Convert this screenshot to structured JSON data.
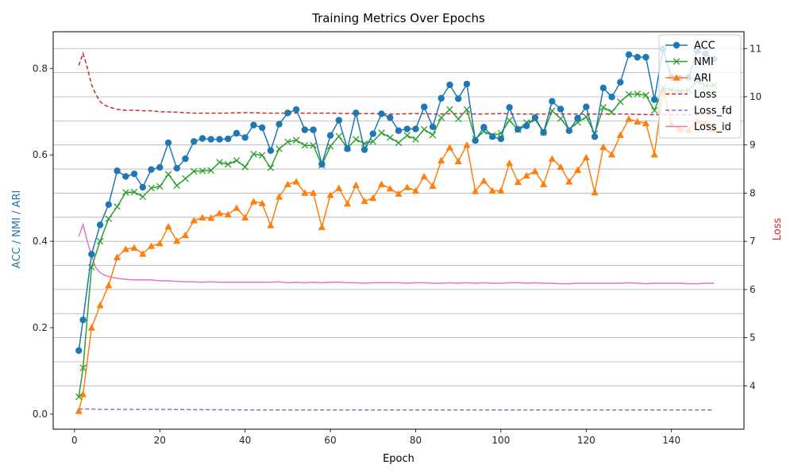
{
  "chart_data": {
    "type": "line",
    "title": "Training Metrics Over Epochs",
    "xlabel": "Epoch",
    "ylabel_left": "ACC / NMI / ARI",
    "ylabel_right": "Loss",
    "xlim": [
      -5,
      157
    ],
    "ylim_left": [
      -0.035,
      0.885
    ],
    "ylim_right": [
      3.1,
      11.35
    ],
    "x_ticks": [
      0,
      20,
      40,
      60,
      80,
      100,
      120,
      140
    ],
    "y_ticks_left": [
      0.0,
      0.2,
      0.4,
      0.6,
      0.8
    ],
    "y_ticks_right": [
      4,
      5,
      6,
      7,
      8,
      9,
      10,
      11
    ],
    "grid": "horizontal lines at right-axis ticks",
    "legend_position": "top-right",
    "colors": {
      "ACC": "#1f77b4",
      "NMI": "#2ca02c",
      "ARI": "#ff7f0e",
      "Loss": "#d62728",
      "Loss_fd": "#9467bd",
      "Loss_id": "#e377c2",
      "left_axis_text": "#1f77b4",
      "right_axis_text": "#d62728"
    },
    "metric_epochs": [
      1,
      2,
      4,
      6,
      8,
      10,
      12,
      14,
      16,
      18,
      20,
      22,
      24,
      26,
      28,
      30,
      32,
      34,
      36,
      38,
      40,
      42,
      44,
      46,
      48,
      50,
      52,
      54,
      56,
      58,
      60,
      62,
      64,
      66,
      68,
      70,
      72,
      74,
      76,
      78,
      80,
      82,
      84,
      86,
      88,
      90,
      92,
      94,
      96,
      98,
      100,
      102,
      104,
      106,
      108,
      110,
      112,
      114,
      116,
      118,
      120,
      122,
      124,
      126,
      128,
      130,
      132,
      134,
      136,
      138,
      140,
      142,
      144,
      146,
      148,
      150
    ],
    "series": [
      {
        "name": "ACC",
        "axis": "left",
        "marker": "circle",
        "style": "solid",
        "values": [
          0.147,
          0.218,
          0.37,
          0.438,
          0.485,
          0.563,
          0.55,
          0.556,
          0.525,
          0.566,
          0.571,
          0.628,
          0.569,
          0.591,
          0.631,
          0.638,
          0.636,
          0.636,
          0.637,
          0.65,
          0.64,
          0.669,
          0.663,
          0.61,
          0.671,
          0.697,
          0.705,
          0.658,
          0.658,
          0.578,
          0.645,
          0.68,
          0.614,
          0.697,
          0.612,
          0.649,
          0.695,
          0.686,
          0.656,
          0.66,
          0.66,
          0.711,
          0.665,
          0.731,
          0.762,
          0.73,
          0.764,
          0.633,
          0.664,
          0.642,
          0.637,
          0.71,
          0.659,
          0.667,
          0.686,
          0.652,
          0.724,
          0.706,
          0.656,
          0.685,
          0.711,
          0.642,
          0.755,
          0.734,
          0.768,
          0.832,
          0.826,
          0.826,
          0.728,
          0.845,
          0.779,
          0.778,
          0.779,
          0.84,
          0.834,
          0.822
        ]
      },
      {
        "name": "NMI",
        "axis": "left",
        "marker": "x",
        "style": "solid",
        "values": [
          0.04,
          0.107,
          0.34,
          0.4,
          0.452,
          0.48,
          0.513,
          0.514,
          0.503,
          0.523,
          0.527,
          0.555,
          0.529,
          0.545,
          0.562,
          0.563,
          0.564,
          0.583,
          0.578,
          0.587,
          0.572,
          0.602,
          0.599,
          0.57,
          0.614,
          0.63,
          0.634,
          0.622,
          0.622,
          0.576,
          0.62,
          0.643,
          0.616,
          0.636,
          0.626,
          0.631,
          0.651,
          0.64,
          0.628,
          0.645,
          0.636,
          0.659,
          0.646,
          0.686,
          0.705,
          0.683,
          0.705,
          0.637,
          0.654,
          0.645,
          0.65,
          0.68,
          0.658,
          0.675,
          0.682,
          0.652,
          0.702,
          0.684,
          0.659,
          0.675,
          0.688,
          0.649,
          0.71,
          0.699,
          0.723,
          0.74,
          0.741,
          0.738,
          0.703,
          0.755,
          0.75,
          0.747,
          0.75,
          0.77,
          0.76,
          0.761
        ]
      },
      {
        "name": "ARI",
        "axis": "left",
        "marker": "triangle",
        "style": "solid",
        "values": [
          0.007,
          0.046,
          0.2,
          0.252,
          0.298,
          0.363,
          0.382,
          0.385,
          0.371,
          0.389,
          0.395,
          0.434,
          0.401,
          0.414,
          0.448,
          0.455,
          0.454,
          0.465,
          0.462,
          0.477,
          0.455,
          0.492,
          0.488,
          0.437,
          0.503,
          0.532,
          0.538,
          0.512,
          0.512,
          0.433,
          0.507,
          0.523,
          0.487,
          0.53,
          0.493,
          0.5,
          0.532,
          0.522,
          0.51,
          0.525,
          0.517,
          0.55,
          0.528,
          0.587,
          0.617,
          0.585,
          0.623,
          0.516,
          0.54,
          0.517,
          0.517,
          0.581,
          0.537,
          0.552,
          0.562,
          0.532,
          0.591,
          0.572,
          0.538,
          0.565,
          0.594,
          0.513,
          0.618,
          0.601,
          0.646,
          0.683,
          0.677,
          0.673,
          0.601,
          0.75,
          0.671,
          0.66,
          0.657,
          0.679,
          0.673,
          0.66
        ]
      },
      {
        "name": "Loss",
        "axis": "right",
        "marker": "none",
        "style": "dashed",
        "x": [
          1,
          2,
          3,
          4,
          5,
          6,
          7,
          8,
          10,
          12,
          14,
          16,
          18,
          20,
          24,
          28,
          30,
          35,
          40,
          45,
          50,
          55,
          60,
          65,
          70,
          75,
          80,
          85,
          90,
          95,
          100,
          105,
          110,
          115,
          120,
          125,
          130,
          135,
          140,
          145,
          150
        ],
        "values": [
          10.65,
          10.9,
          10.6,
          10.25,
          10.05,
          9.9,
          9.83,
          9.79,
          9.74,
          9.72,
          9.72,
          9.71,
          9.71,
          9.69,
          9.68,
          9.66,
          9.66,
          9.66,
          9.67,
          9.66,
          9.66,
          9.66,
          9.66,
          9.65,
          9.65,
          9.64,
          9.65,
          9.64,
          9.65,
          9.64,
          9.65,
          9.64,
          9.64,
          9.64,
          9.64,
          9.64,
          9.64,
          9.63,
          9.63,
          9.63,
          9.62
        ]
      },
      {
        "name": "Loss_fd",
        "axis": "right",
        "marker": "none",
        "style": "dashed",
        "x": [
          1,
          2,
          4,
          6,
          10,
          20,
          40,
          60,
          80,
          100,
          120,
          140,
          150
        ],
        "values": [
          3.52,
          3.52,
          3.52,
          3.51,
          3.51,
          3.51,
          3.5,
          3.5,
          3.5,
          3.5,
          3.5,
          3.5,
          3.5
        ]
      },
      {
        "name": "Loss_id",
        "axis": "right",
        "marker": "none",
        "style": "solid",
        "x": [
          1,
          2,
          3,
          4,
          5,
          6,
          7,
          8,
          10,
          12,
          14,
          16,
          18,
          20,
          22,
          24,
          26,
          28,
          30,
          32,
          34,
          36,
          38,
          40,
          42,
          44,
          46,
          48,
          50,
          52,
          54,
          56,
          58,
          60,
          62,
          64,
          66,
          68,
          70,
          72,
          74,
          76,
          78,
          80,
          82,
          84,
          86,
          88,
          90,
          92,
          94,
          96,
          98,
          100,
          102,
          104,
          106,
          108,
          110,
          112,
          114,
          116,
          118,
          120,
          122,
          124,
          126,
          128,
          130,
          132,
          134,
          136,
          138,
          140,
          142,
          144,
          146,
          148,
          150
        ],
        "values": [
          7.1,
          7.35,
          7.0,
          6.7,
          6.45,
          6.35,
          6.3,
          6.27,
          6.23,
          6.21,
          6.2,
          6.2,
          6.2,
          6.18,
          6.18,
          6.17,
          6.16,
          6.16,
          6.15,
          6.16,
          6.15,
          6.15,
          6.15,
          6.15,
          6.15,
          6.15,
          6.15,
          6.16,
          6.14,
          6.15,
          6.14,
          6.15,
          6.14,
          6.15,
          6.15,
          6.14,
          6.14,
          6.13,
          6.14,
          6.14,
          6.14,
          6.14,
          6.13,
          6.14,
          6.14,
          6.13,
          6.13,
          6.14,
          6.13,
          6.14,
          6.13,
          6.14,
          6.13,
          6.13,
          6.14,
          6.14,
          6.13,
          6.14,
          6.13,
          6.13,
          6.12,
          6.12,
          6.13,
          6.13,
          6.13,
          6.13,
          6.13,
          6.13,
          6.14,
          6.13,
          6.12,
          6.13,
          6.13,
          6.13,
          6.13,
          6.12,
          6.12,
          6.13,
          6.13
        ]
      }
    ]
  }
}
